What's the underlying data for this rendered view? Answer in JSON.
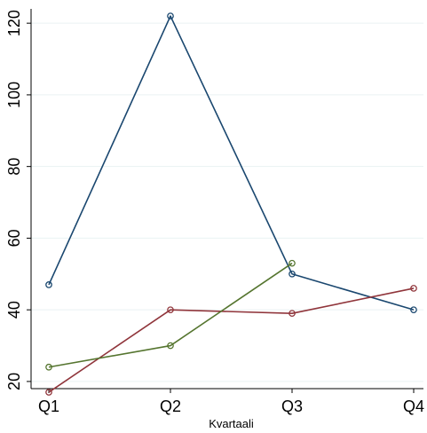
{
  "chart_data": {
    "type": "line",
    "title": "",
    "xlabel": "Kvartaali",
    "ylabel": "",
    "categories": [
      "Q1",
      "Q2",
      "Q3",
      "Q4"
    ],
    "yticks": [
      20,
      40,
      60,
      80,
      100,
      120
    ],
    "ylim": [
      18,
      124
    ],
    "grid": true,
    "legend": "none",
    "series": [
      {
        "color": "#1a476f",
        "values": [
          47,
          122,
          50,
          40
        ]
      },
      {
        "color": "#90353b",
        "values": [
          17,
          40,
          39,
          46
        ]
      },
      {
        "color": "#55752f",
        "values": [
          24,
          30,
          53,
          null
        ]
      }
    ]
  }
}
